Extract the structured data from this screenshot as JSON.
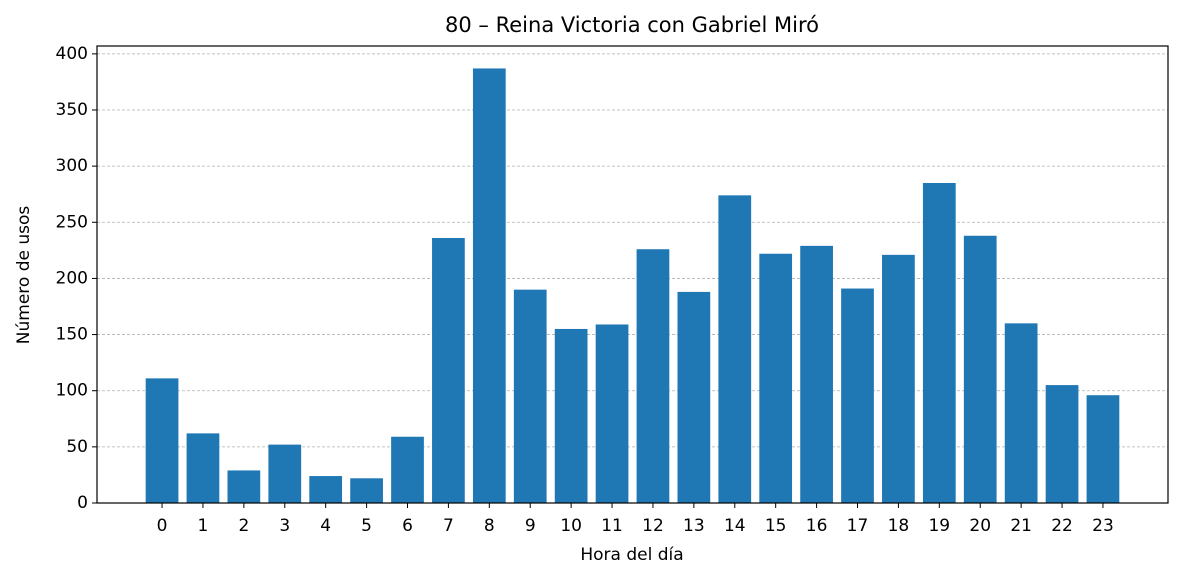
{
  "chart_data": {
    "type": "bar",
    "title": "80 – Reina Victoria con Gabriel Miró",
    "x_label": "Hora del día",
    "y_label": "Número de usos",
    "categories": [
      "0",
      "1",
      "2",
      "3",
      "4",
      "5",
      "6",
      "7",
      "8",
      "9",
      "10",
      "11",
      "12",
      "13",
      "14",
      "15",
      "16",
      "17",
      "18",
      "19",
      "20",
      "21",
      "22",
      "23"
    ],
    "values": [
      111,
      62,
      29,
      52,
      24,
      22,
      59,
      236,
      387,
      190,
      155,
      159,
      226,
      188,
      274,
      222,
      229,
      191,
      221,
      285,
      238,
      160,
      105,
      96
    ],
    "color": "#1f77b4",
    "ylim": [
      0,
      407
    ],
    "yticks": [
      0,
      50,
      100,
      150,
      200,
      250,
      300,
      350,
      400
    ],
    "grid": true
  }
}
